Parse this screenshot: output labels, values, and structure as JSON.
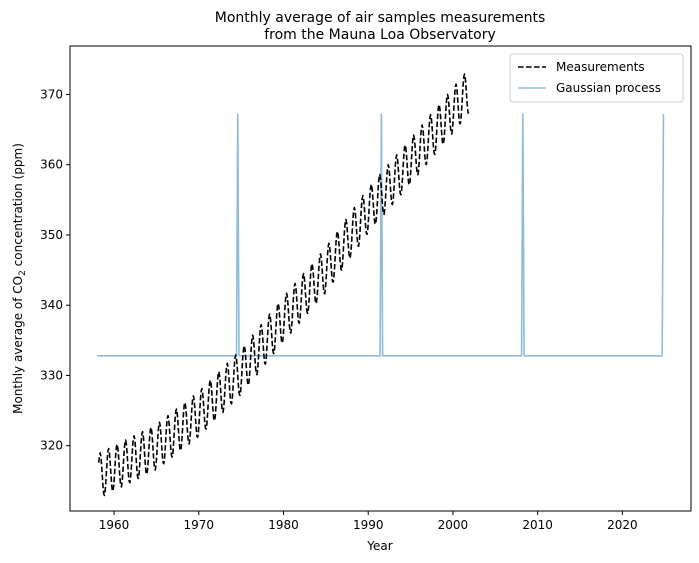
{
  "chart_data": {
    "type": "line",
    "title": [
      "Monthly average of air samples measurements",
      "from the Mauna Loa Observatory"
    ],
    "xlabel": "Year",
    "ylabel": {
      "prefix": "Monthly average of CO",
      "sub": "2",
      "suffix": " concentration (ppm)"
    },
    "xlim": [
      1954.8,
      2028.1
    ],
    "ylim": [
      310.7,
      376.9
    ],
    "x_ticks": [
      1960,
      1970,
      1980,
      1990,
      2000,
      2010,
      2020
    ],
    "y_ticks": [
      320,
      330,
      340,
      350,
      360,
      370
    ],
    "legend": {
      "placement": "top-right"
    },
    "series": [
      {
        "name": "Measurements",
        "style": "dashed",
        "color": "#000000",
        "x_range": [
          1958.2,
          2001.9
        ],
        "trend": [
          [
            1958.2,
            315.7
          ],
          [
            1965.0,
            319.8
          ],
          [
            1970.0,
            324.5
          ],
          [
            1975.0,
            330.5
          ],
          [
            1980.0,
            338.0
          ],
          [
            1985.0,
            345.0
          ],
          [
            1990.0,
            353.5
          ],
          [
            1995.0,
            360.5
          ],
          [
            2001.9,
            370.5
          ]
        ],
        "seasonal_amplitude": 3.2
      },
      {
        "name": "Gaussian process",
        "style": "solid",
        "color": "#8fbbd9",
        "x": [
          1958.0,
          1974.45,
          1974.6,
          1974.75,
          1991.4,
          1991.55,
          1991.7,
          2008.1,
          2008.25,
          2008.4,
          2024.7,
          2024.85
        ],
        "y": [
          332.8,
          332.8,
          367.2,
          332.8,
          332.8,
          367.2,
          332.8,
          332.8,
          367.2,
          332.8,
          332.8,
          367.2
        ]
      }
    ]
  }
}
